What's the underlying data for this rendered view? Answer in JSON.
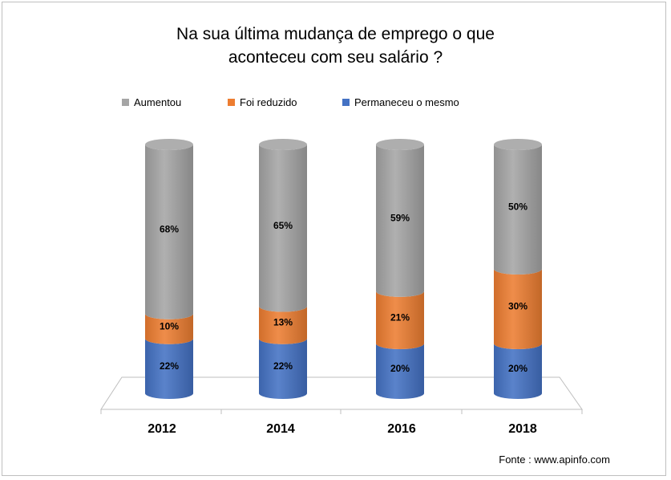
{
  "title_line1": "Na sua última mudança de emprego o que",
  "title_line2": "aconteceu com seu salário ?",
  "source": "Fonte : www.apinfo.com",
  "chart_data": {
    "type": "bar",
    "stacked": true,
    "orientation": "vertical",
    "style": "3d-cylinder",
    "categories": [
      "2012",
      "2014",
      "2016",
      "2018"
    ],
    "series": [
      {
        "name": "Permaneceu o mesmo",
        "values": [
          22,
          22,
          20,
          20
        ],
        "color": "#4472c4",
        "labels": [
          "22%",
          "22%",
          "20%",
          "20%"
        ]
      },
      {
        "name": "Foi reduzido",
        "values": [
          10,
          13,
          21,
          30
        ],
        "color": "#ed7d31",
        "labels": [
          "10%",
          "13%",
          "21%",
          "30%"
        ]
      },
      {
        "name": "Aumentou",
        "values": [
          68,
          65,
          59,
          50
        ],
        "color": "#a5a5a5",
        "labels": [
          "68%",
          "65%",
          "59%",
          "50%"
        ]
      }
    ],
    "legend_order": [
      "Aumentou",
      "Foi reduzido",
      "Permaneceu o mesmo"
    ],
    "legend_position": "top",
    "ylim": [
      0,
      100
    ],
    "unit": "%",
    "grid": false
  }
}
